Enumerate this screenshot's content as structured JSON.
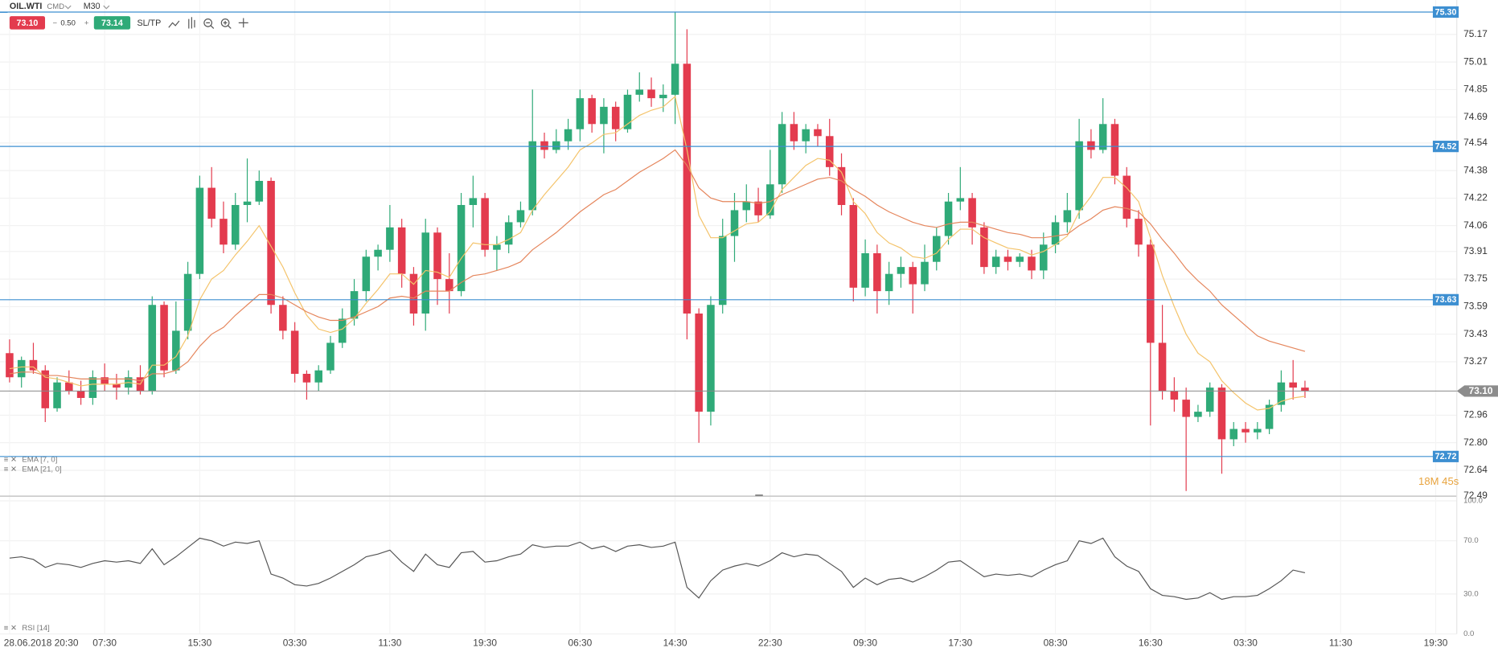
{
  "chart_data": {
    "type": "candlestick",
    "symbol": "OIL.WTI",
    "market": "CMD",
    "interval": "M30",
    "toolbar": {
      "sell": "73.10",
      "spread": "0.50",
      "buy": "73.14",
      "sltp": "SL/TP"
    },
    "timer": "18M 45s",
    "up_color": "#2faa78",
    "down_color": "#e33b4e",
    "grid": true,
    "categories": [
      "28.06.2018 20:30",
      null,
      null,
      null,
      null,
      null,
      null,
      null,
      "07:30",
      null,
      null,
      null,
      null,
      null,
      null,
      null,
      "15:30",
      null,
      null,
      null,
      null,
      null,
      null,
      null,
      "03:30",
      null,
      null,
      null,
      null,
      null,
      null,
      null,
      "11:30",
      null,
      null,
      null,
      null,
      null,
      null,
      null,
      "19:30",
      null,
      null,
      null,
      null,
      null,
      null,
      null,
      "06:30",
      null,
      null,
      null,
      null,
      null,
      null,
      null,
      "14:30",
      null,
      null,
      null,
      null,
      null,
      null,
      null,
      "22:30",
      null,
      null,
      null,
      null,
      null,
      null,
      null,
      "09:30",
      null,
      null,
      null,
      null,
      null,
      null,
      null,
      "17:30",
      null,
      null,
      null,
      null,
      null,
      null,
      null,
      "08:30",
      null,
      null,
      null,
      null,
      null,
      null,
      null,
      "16:30",
      null,
      null,
      null,
      null,
      null,
      null,
      null,
      "03:30",
      null,
      null,
      null,
      null,
      null,
      null,
      null,
      "11:30",
      null,
      null,
      null,
      null,
      null,
      null,
      null,
      "19:30",
      null
    ],
    "candles": [
      [
        73.32,
        73.4,
        73.15,
        73.18
      ],
      [
        73.18,
        73.3,
        73.12,
        73.28
      ],
      [
        73.28,
        73.38,
        73.2,
        73.22
      ],
      [
        73.22,
        73.25,
        72.92,
        73.0
      ],
      [
        73.0,
        73.18,
        72.98,
        73.15
      ],
      [
        73.15,
        73.22,
        73.08,
        73.1
      ],
      [
        73.1,
        73.16,
        73.02,
        73.06
      ],
      [
        73.06,
        73.22,
        73.02,
        73.18
      ],
      [
        73.18,
        73.26,
        73.1,
        73.14
      ],
      [
        73.14,
        73.2,
        73.05,
        73.12
      ],
      [
        73.12,
        73.22,
        73.08,
        73.18
      ],
      [
        73.18,
        73.25,
        73.08,
        73.1
      ],
      [
        73.1,
        73.65,
        73.08,
        73.6
      ],
      [
        73.6,
        73.62,
        73.18,
        73.22
      ],
      [
        73.22,
        73.62,
        73.2,
        73.45
      ],
      [
        73.45,
        73.85,
        73.4,
        73.78
      ],
      [
        73.78,
        74.35,
        73.75,
        74.28
      ],
      [
        74.28,
        74.4,
        74.05,
        74.1
      ],
      [
        74.1,
        74.2,
        73.9,
        73.95
      ],
      [
        73.95,
        74.25,
        73.92,
        74.18
      ],
      [
        74.18,
        74.45,
        74.08,
        74.2
      ],
      [
        74.2,
        74.38,
        74.18,
        74.32
      ],
      [
        74.32,
        74.34,
        73.55,
        73.6
      ],
      [
        73.6,
        73.65,
        73.4,
        73.45
      ],
      [
        73.45,
        73.5,
        73.15,
        73.2
      ],
      [
        73.2,
        73.22,
        73.05,
        73.15
      ],
      [
        73.15,
        73.25,
        73.1,
        73.22
      ],
      [
        73.22,
        73.42,
        73.2,
        73.38
      ],
      [
        73.38,
        73.58,
        73.35,
        73.52
      ],
      [
        73.52,
        73.75,
        73.48,
        73.68
      ],
      [
        73.68,
        73.92,
        73.62,
        73.88
      ],
      [
        73.88,
        73.95,
        73.8,
        73.92
      ],
      [
        73.92,
        74.18,
        73.85,
        74.05
      ],
      [
        74.05,
        74.1,
        73.7,
        73.78
      ],
      [
        73.78,
        73.82,
        73.48,
        73.55
      ],
      [
        73.55,
        74.1,
        73.45,
        74.02
      ],
      [
        74.02,
        74.05,
        73.6,
        73.75
      ],
      [
        73.75,
        73.9,
        73.55,
        73.68
      ],
      [
        73.68,
        74.25,
        73.65,
        74.18
      ],
      [
        74.18,
        74.35,
        74.05,
        74.22
      ],
      [
        74.22,
        74.25,
        73.88,
        73.92
      ],
      [
        73.92,
        74.0,
        73.8,
        73.95
      ],
      [
        73.95,
        74.12,
        73.9,
        74.08
      ],
      [
        74.08,
        74.2,
        74.05,
        74.15
      ],
      [
        74.15,
        74.85,
        74.12,
        74.55
      ],
      [
        74.55,
        74.6,
        74.45,
        74.5
      ],
      [
        74.5,
        74.62,
        74.48,
        74.55
      ],
      [
        74.55,
        74.68,
        74.5,
        74.62
      ],
      [
        74.62,
        74.85,
        74.55,
        74.8
      ],
      [
        74.8,
        74.82,
        74.6,
        74.65
      ],
      [
        74.65,
        74.8,
        74.48,
        74.75
      ],
      [
        74.75,
        74.78,
        74.55,
        74.62
      ],
      [
        74.62,
        74.85,
        74.6,
        74.82
      ],
      [
        74.82,
        74.95,
        74.78,
        74.85
      ],
      [
        74.85,
        74.92,
        74.75,
        74.8
      ],
      [
        74.8,
        74.88,
        74.72,
        74.82
      ],
      [
        74.82,
        75.3,
        74.65,
        75.0
      ],
      [
        75.0,
        75.2,
        73.4,
        73.55
      ],
      [
        73.55,
        73.58,
        72.8,
        72.98
      ],
      [
        72.98,
        73.65,
        72.9,
        73.6
      ],
      [
        73.6,
        74.1,
        73.55,
        74.0
      ],
      [
        74.0,
        74.25,
        73.85,
        74.15
      ],
      [
        74.15,
        74.3,
        74.08,
        74.2
      ],
      [
        74.2,
        74.28,
        74.08,
        74.12
      ],
      [
        74.12,
        74.5,
        74.1,
        74.3
      ],
      [
        74.3,
        74.72,
        74.25,
        74.65
      ],
      [
        74.65,
        74.72,
        74.5,
        74.55
      ],
      [
        74.55,
        74.65,
        74.48,
        74.62
      ],
      [
        74.62,
        74.65,
        74.52,
        74.58
      ],
      [
        74.58,
        74.68,
        74.35,
        74.4
      ],
      [
        74.4,
        74.48,
        74.12,
        74.18
      ],
      [
        74.18,
        74.22,
        73.62,
        73.7
      ],
      [
        73.7,
        73.98,
        73.65,
        73.9
      ],
      [
        73.9,
        73.95,
        73.55,
        73.68
      ],
      [
        73.68,
        73.85,
        73.6,
        73.78
      ],
      [
        73.78,
        73.88,
        73.7,
        73.82
      ],
      [
        73.82,
        73.85,
        73.55,
        73.72
      ],
      [
        73.72,
        73.95,
        73.68,
        73.85
      ],
      [
        73.85,
        74.05,
        73.8,
        74.0
      ],
      [
        74.0,
        74.25,
        73.95,
        74.2
      ],
      [
        74.2,
        74.4,
        74.15,
        74.22
      ],
      [
        74.22,
        74.25,
        73.95,
        74.05
      ],
      [
        74.05,
        74.08,
        73.78,
        73.82
      ],
      [
        73.82,
        73.92,
        73.78,
        73.88
      ],
      [
        73.88,
        73.92,
        73.8,
        73.85
      ],
      [
        73.85,
        73.9,
        73.82,
        73.88
      ],
      [
        73.88,
        73.92,
        73.75,
        73.8
      ],
      [
        73.8,
        74.02,
        73.75,
        73.95
      ],
      [
        73.95,
        74.12,
        73.9,
        74.08
      ],
      [
        74.08,
        74.25,
        74.02,
        74.15
      ],
      [
        74.15,
        74.68,
        74.1,
        74.55
      ],
      [
        74.55,
        74.62,
        74.45,
        74.5
      ],
      [
        74.5,
        74.8,
        74.48,
        74.65
      ],
      [
        74.65,
        74.68,
        74.3,
        74.35
      ],
      [
        74.35,
        74.4,
        74.05,
        74.1
      ],
      [
        74.1,
        74.15,
        73.88,
        73.95
      ],
      [
        73.95,
        73.98,
        72.9,
        73.38
      ],
      [
        73.38,
        73.6,
        73.05,
        73.1
      ],
      [
        73.1,
        73.18,
        72.98,
        73.05
      ],
      [
        73.05,
        73.12,
        72.52,
        72.95
      ],
      [
        72.95,
        73.02,
        72.92,
        72.98
      ],
      [
        72.98,
        73.15,
        72.95,
        73.12
      ],
      [
        73.12,
        73.14,
        72.62,
        72.82
      ],
      [
        72.82,
        72.92,
        72.78,
        72.88
      ],
      [
        72.88,
        72.92,
        72.8,
        72.86
      ],
      [
        72.86,
        72.92,
        72.82,
        72.88
      ],
      [
        72.88,
        73.05,
        72.85,
        73.02
      ],
      [
        73.02,
        73.22,
        72.98,
        73.15
      ],
      [
        73.15,
        73.28,
        73.05,
        73.12
      ],
      [
        73.12,
        73.16,
        73.06,
        73.1
      ],
      null,
      null,
      null,
      null,
      null,
      null,
      null,
      null,
      null,
      null,
      null,
      null
    ],
    "series": [
      {
        "name": "EMA [7, 0]",
        "color": "#f4c36a",
        "values": [
          73.23,
          73.24,
          73.24,
          73.18,
          73.17,
          73.15,
          73.13,
          73.14,
          73.14,
          73.14,
          73.15,
          73.14,
          73.25,
          73.25,
          73.3,
          73.42,
          73.63,
          73.75,
          73.8,
          73.89,
          73.97,
          74.06,
          73.94,
          73.82,
          73.67,
          73.54,
          73.46,
          73.44,
          73.46,
          73.52,
          73.61,
          73.69,
          73.78,
          73.78,
          73.72,
          73.8,
          73.79,
          73.76,
          73.87,
          73.96,
          73.95,
          73.95,
          73.98,
          74.02,
          74.15,
          74.24,
          74.32,
          74.4,
          74.5,
          74.54,
          74.59,
          74.6,
          74.65,
          74.7,
          74.73,
          74.75,
          74.81,
          74.5,
          74.12,
          73.99,
          73.99,
          74.03,
          74.07,
          74.08,
          74.14,
          74.27,
          74.34,
          74.41,
          74.45,
          74.44,
          74.37,
          74.2,
          74.13,
          74.02,
          73.96,
          73.93,
          73.88,
          73.87,
          73.9,
          73.98,
          74.04,
          74.04,
          73.99,
          73.96,
          73.93,
          73.92,
          73.89,
          73.91,
          73.95,
          74.0,
          74.14,
          74.23,
          74.34,
          74.34,
          74.28,
          74.2,
          73.99,
          73.77,
          73.59,
          73.43,
          73.32,
          73.27,
          73.16,
          73.09,
          73.03,
          72.99,
          73.0,
          73.04,
          73.06,
          73.07,
          null,
          null,
          null,
          null,
          null,
          null,
          null,
          null,
          null,
          null,
          null,
          null
        ]
      },
      {
        "name": "EMA [21, 0]",
        "color": "#e5855b",
        "values": [
          73.2,
          73.21,
          73.21,
          73.19,
          73.19,
          73.18,
          73.17,
          73.17,
          73.17,
          73.17,
          73.17,
          73.16,
          73.2,
          73.2,
          73.22,
          73.27,
          73.36,
          73.43,
          73.47,
          73.54,
          73.6,
          73.66,
          73.66,
          73.64,
          73.6,
          73.56,
          73.53,
          73.51,
          73.51,
          73.53,
          73.56,
          73.59,
          73.64,
          73.65,
          73.64,
          73.68,
          73.68,
          73.68,
          73.73,
          73.77,
          73.78,
          73.8,
          73.82,
          73.85,
          73.92,
          73.97,
          74.02,
          74.08,
          74.14,
          74.19,
          74.24,
          74.27,
          74.32,
          74.37,
          74.41,
          74.45,
          74.5,
          74.41,
          74.28,
          74.22,
          74.2,
          74.2,
          74.2,
          74.19,
          74.2,
          74.24,
          74.27,
          74.3,
          74.33,
          74.34,
          74.32,
          74.27,
          74.23,
          74.18,
          74.14,
          74.11,
          74.08,
          74.06,
          74.05,
          74.07,
          74.08,
          74.08,
          74.06,
          74.04,
          74.02,
          74.01,
          73.99,
          73.99,
          74.0,
          74.01,
          74.06,
          74.1,
          74.15,
          74.17,
          74.16,
          74.14,
          74.07,
          73.98,
          73.9,
          73.81,
          73.74,
          73.68,
          73.6,
          73.54,
          73.48,
          73.42,
          73.39,
          73.37,
          73.35,
          73.33,
          null,
          null,
          null,
          null,
          null,
          null,
          null,
          null,
          null,
          null,
          null,
          null
        ]
      }
    ],
    "ylim": [
      72.49,
      75.37
    ],
    "yticks": [
      75.17,
      75.01,
      74.85,
      74.69,
      74.54,
      74.38,
      74.22,
      74.06,
      73.91,
      73.75,
      73.59,
      73.43,
      73.27,
      72.96,
      {
        "value": 72.8,
        "label": "72.80"
      },
      72.64,
      72.49
    ],
    "levels_color": "#3d8fd1",
    "levels": [
      {
        "value": 75.3,
        "label": "75.30"
      },
      74.52,
      73.63,
      72.72
    ],
    "last_price": {
      "value": 73.1,
      "label": "73.10"
    },
    "rsi": {
      "name": "RSI [14]",
      "color": "#555555",
      "ylim": [
        0,
        100
      ],
      "yticks": [
        {
          "value": 100,
          "label": "100.0"
        },
        {
          "value": 70,
          "label": "70.0"
        },
        {
          "value": 30,
          "label": "30.0"
        },
        {
          "value": 0,
          "label": "0.0"
        }
      ],
      "values": [
        57,
        58,
        56,
        50,
        53,
        52,
        50,
        53,
        55,
        54,
        55,
        53,
        64,
        52,
        58,
        65,
        72,
        70,
        66,
        69,
        68,
        70,
        45,
        42,
        37,
        36,
        38,
        42,
        47,
        52,
        58,
        60,
        63,
        54,
        47,
        60,
        52,
        50,
        61,
        62,
        54,
        55,
        58,
        60,
        67,
        65,
        66,
        66,
        69,
        64,
        66,
        62,
        66,
        67,
        65,
        66,
        69,
        35,
        27,
        40,
        48,
        51,
        53,
        51,
        55,
        61,
        58,
        60,
        59,
        53,
        47,
        35,
        42,
        37,
        41,
        42,
        39,
        43,
        48,
        54,
        55,
        49,
        43,
        45,
        44,
        45,
        43,
        48,
        52,
        55,
        70,
        68,
        72,
        58,
        51,
        47,
        34,
        29,
        28,
        26,
        27,
        31,
        26,
        28,
        28,
        29,
        34,
        40,
        48,
        46,
        null,
        null,
        null,
        null,
        null,
        null,
        null,
        null,
        null,
        null,
        null,
        null
      ]
    }
  }
}
